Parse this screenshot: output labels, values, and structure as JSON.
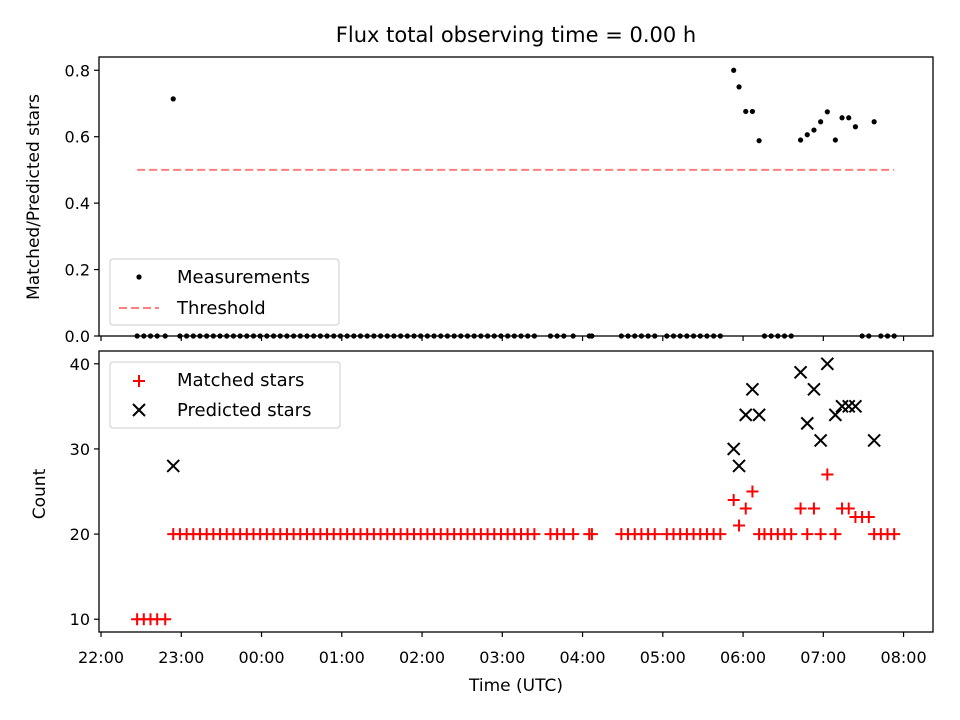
{
  "chart_data": [
    {
      "type": "scatter",
      "title": "Flux total observing time = 0.00 h",
      "xlabel": "",
      "ylabel": "Matched/Predicted stars",
      "ylim": [
        0,
        0.84
      ],
      "yticks": [
        "0.0",
        "0.2",
        "0.4",
        "0.6",
        "0.8"
      ],
      "legend_position": "lower-left",
      "series": [
        {
          "name": "Measurements",
          "marker": "dot",
          "color": "#000000",
          "points": [
            [
              "22:27",
              0
            ],
            [
              "22:32",
              0
            ],
            [
              "22:37",
              0
            ],
            [
              "22:42",
              0
            ],
            [
              "22:48",
              0
            ],
            [
              "22:54",
              0.714
            ],
            [
              "22:59",
              0
            ],
            [
              "23:04",
              0
            ],
            [
              "23:09",
              0
            ],
            [
              "23:14",
              0
            ],
            [
              "23:19",
              0
            ],
            [
              "23:24",
              0
            ],
            [
              "23:29",
              0
            ],
            [
              "23:34",
              0
            ],
            [
              "23:39",
              0
            ],
            [
              "23:44",
              0
            ],
            [
              "23:49",
              0
            ],
            [
              "23:54",
              0
            ],
            [
              "23:59",
              0
            ],
            [
              "00:04",
              0
            ],
            [
              "00:09",
              0
            ],
            [
              "00:14",
              0
            ],
            [
              "00:19",
              0
            ],
            [
              "00:24",
              0
            ],
            [
              "00:29",
              0
            ],
            [
              "00:34",
              0
            ],
            [
              "00:39",
              0
            ],
            [
              "00:44",
              0
            ],
            [
              "00:49",
              0
            ],
            [
              "00:54",
              0
            ],
            [
              "00:59",
              0
            ],
            [
              "01:04",
              0
            ],
            [
              "01:09",
              0
            ],
            [
              "01:14",
              0
            ],
            [
              "01:19",
              0
            ],
            [
              "01:24",
              0
            ],
            [
              "01:29",
              0
            ],
            [
              "01:34",
              0
            ],
            [
              "01:39",
              0
            ],
            [
              "01:44",
              0
            ],
            [
              "01:49",
              0
            ],
            [
              "01:54",
              0
            ],
            [
              "01:59",
              0
            ],
            [
              "02:04",
              0
            ],
            [
              "02:09",
              0
            ],
            [
              "02:14",
              0
            ],
            [
              "02:19",
              0
            ],
            [
              "02:24",
              0
            ],
            [
              "02:29",
              0
            ],
            [
              "02:34",
              0
            ],
            [
              "02:39",
              0
            ],
            [
              "02:44",
              0
            ],
            [
              "02:49",
              0
            ],
            [
              "02:54",
              0
            ],
            [
              "02:59",
              0
            ],
            [
              "03:04",
              0
            ],
            [
              "03:09",
              0
            ],
            [
              "03:14",
              0
            ],
            [
              "03:19",
              0
            ],
            [
              "03:24",
              0
            ],
            [
              "03:36",
              0
            ],
            [
              "03:41",
              0
            ],
            [
              "03:46",
              0
            ],
            [
              "03:53",
              0
            ],
            [
              "04:05",
              0
            ],
            [
              "04:07",
              0
            ],
            [
              "04:29",
              0
            ],
            [
              "04:34",
              0
            ],
            [
              "04:39",
              0
            ],
            [
              "04:44",
              0
            ],
            [
              "04:49",
              0
            ],
            [
              "04:54",
              0
            ],
            [
              "05:03",
              0
            ],
            [
              "05:08",
              0
            ],
            [
              "05:13",
              0
            ],
            [
              "05:18",
              0
            ],
            [
              "05:23",
              0
            ],
            [
              "05:28",
              0
            ],
            [
              "05:33",
              0
            ],
            [
              "05:38",
              0
            ],
            [
              "05:43",
              0
            ],
            [
              "05:53",
              0.8
            ],
            [
              "05:57",
              0.75
            ],
            [
              "06:02",
              0.676
            ],
            [
              "06:07",
              0.676
            ],
            [
              "06:12",
              0.588
            ],
            [
              "06:16",
              0
            ],
            [
              "06:21",
              0
            ],
            [
              "06:26",
              0
            ],
            [
              "06:31",
              0
            ],
            [
              "06:36",
              0
            ],
            [
              "06:43",
              0.59
            ],
            [
              "06:48",
              0.606
            ],
            [
              "06:53",
              0.62
            ],
            [
              "06:58",
              0.645
            ],
            [
              "07:03",
              0.675
            ],
            [
              "07:09",
              0.59
            ],
            [
              "07:14",
              0.657
            ],
            [
              "07:19",
              0.657
            ],
            [
              "07:24",
              0.63
            ],
            [
              "07:29",
              0
            ],
            [
              "07:34",
              0
            ],
            [
              "07:38",
              0.645
            ],
            [
              "07:43",
              0
            ],
            [
              "07:48",
              0
            ],
            [
              "07:53",
              0
            ]
          ]
        },
        {
          "name": "Threshold",
          "style": "dashed",
          "color": "#ff7f7f",
          "points": [
            [
              "22:27",
              0.5
            ],
            [
              "07:53",
              0.5
            ]
          ]
        }
      ]
    },
    {
      "type": "scatter",
      "title": "",
      "xlabel": "Time (UTC)",
      "ylabel": "Count",
      "ylim": [
        8.5,
        41.5
      ],
      "yticks": [
        "10",
        "20",
        "30",
        "40"
      ],
      "xticks": [
        "22:00",
        "23:00",
        "00:00",
        "01:00",
        "02:00",
        "03:00",
        "04:00",
        "05:00",
        "06:00",
        "07:00",
        "08:00"
      ],
      "legend_position": "upper-left",
      "series": [
        {
          "name": "Matched stars",
          "marker": "plus",
          "color": "#ff0000",
          "points": [
            [
              "22:27",
              10
            ],
            [
              "22:32",
              10
            ],
            [
              "22:37",
              10
            ],
            [
              "22:42",
              10
            ],
            [
              "22:48",
              10
            ],
            [
              "22:54",
              20
            ],
            [
              "22:59",
              20
            ],
            [
              "23:04",
              20
            ],
            [
              "23:09",
              20
            ],
            [
              "23:14",
              20
            ],
            [
              "23:19",
              20
            ],
            [
              "23:24",
              20
            ],
            [
              "23:29",
              20
            ],
            [
              "23:34",
              20
            ],
            [
              "23:39",
              20
            ],
            [
              "23:44",
              20
            ],
            [
              "23:49",
              20
            ],
            [
              "23:54",
              20
            ],
            [
              "23:59",
              20
            ],
            [
              "00:04",
              20
            ],
            [
              "00:09",
              20
            ],
            [
              "00:14",
              20
            ],
            [
              "00:19",
              20
            ],
            [
              "00:24",
              20
            ],
            [
              "00:29",
              20
            ],
            [
              "00:34",
              20
            ],
            [
              "00:39",
              20
            ],
            [
              "00:44",
              20
            ],
            [
              "00:49",
              20
            ],
            [
              "00:54",
              20
            ],
            [
              "00:59",
              20
            ],
            [
              "01:04",
              20
            ],
            [
              "01:09",
              20
            ],
            [
              "01:14",
              20
            ],
            [
              "01:19",
              20
            ],
            [
              "01:24",
              20
            ],
            [
              "01:29",
              20
            ],
            [
              "01:34",
              20
            ],
            [
              "01:39",
              20
            ],
            [
              "01:44",
              20
            ],
            [
              "01:49",
              20
            ],
            [
              "01:54",
              20
            ],
            [
              "01:59",
              20
            ],
            [
              "02:04",
              20
            ],
            [
              "02:09",
              20
            ],
            [
              "02:14",
              20
            ],
            [
              "02:19",
              20
            ],
            [
              "02:24",
              20
            ],
            [
              "02:29",
              20
            ],
            [
              "02:34",
              20
            ],
            [
              "02:39",
              20
            ],
            [
              "02:44",
              20
            ],
            [
              "02:49",
              20
            ],
            [
              "02:54",
              20
            ],
            [
              "02:59",
              20
            ],
            [
              "03:04",
              20
            ],
            [
              "03:09",
              20
            ],
            [
              "03:14",
              20
            ],
            [
              "03:19",
              20
            ],
            [
              "03:24",
              20
            ],
            [
              "03:36",
              20
            ],
            [
              "03:41",
              20
            ],
            [
              "03:46",
              20
            ],
            [
              "03:53",
              20
            ],
            [
              "04:05",
              20
            ],
            [
              "04:07",
              20
            ],
            [
              "04:29",
              20
            ],
            [
              "04:34",
              20
            ],
            [
              "04:39",
              20
            ],
            [
              "04:44",
              20
            ],
            [
              "04:49",
              20
            ],
            [
              "04:54",
              20
            ],
            [
              "05:03",
              20
            ],
            [
              "05:08",
              20
            ],
            [
              "05:13",
              20
            ],
            [
              "05:18",
              20
            ],
            [
              "05:23",
              20
            ],
            [
              "05:28",
              20
            ],
            [
              "05:33",
              20
            ],
            [
              "05:38",
              20
            ],
            [
              "05:43",
              20
            ],
            [
              "05:53",
              24
            ],
            [
              "05:57",
              21
            ],
            [
              "06:02",
              23
            ],
            [
              "06:07",
              25
            ],
            [
              "06:12",
              20
            ],
            [
              "06:16",
              20
            ],
            [
              "06:21",
              20
            ],
            [
              "06:26",
              20
            ],
            [
              "06:31",
              20
            ],
            [
              "06:36",
              20
            ],
            [
              "06:43",
              23
            ],
            [
              "06:48",
              20
            ],
            [
              "06:53",
              23
            ],
            [
              "06:58",
              20
            ],
            [
              "07:03",
              27
            ],
            [
              "07:09",
              20
            ],
            [
              "07:14",
              23
            ],
            [
              "07:19",
              23
            ],
            [
              "07:24",
              22
            ],
            [
              "07:29",
              22
            ],
            [
              "07:34",
              22
            ],
            [
              "07:38",
              20
            ],
            [
              "07:43",
              20
            ],
            [
              "07:48",
              20
            ],
            [
              "07:53",
              20
            ]
          ]
        },
        {
          "name": "Predicted stars",
          "marker": "x",
          "color": "#000000",
          "points": [
            [
              "22:54",
              28
            ],
            [
              "05:53",
              30
            ],
            [
              "05:57",
              28
            ],
            [
              "06:02",
              34
            ],
            [
              "06:07",
              37
            ],
            [
              "06:12",
              34
            ],
            [
              "06:43",
              39
            ],
            [
              "06:48",
              33
            ],
            [
              "06:53",
              37
            ],
            [
              "06:58",
              31
            ],
            [
              "07:03",
              40
            ],
            [
              "07:09",
              34
            ],
            [
              "07:14",
              35
            ],
            [
              "07:19",
              35
            ],
            [
              "07:24",
              35
            ],
            [
              "07:38",
              31
            ]
          ]
        }
      ]
    }
  ]
}
